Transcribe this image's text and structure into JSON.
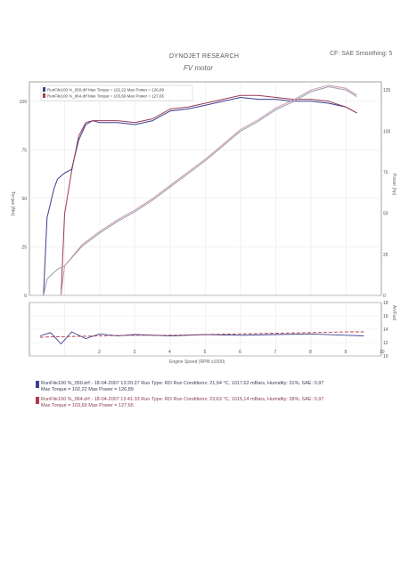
{
  "header": {
    "title": "DYNOJET RESEARCH",
    "subtitle": "FV motor",
    "cf": "CF: SAE  Smoothing: 5"
  },
  "chart_data": [
    {
      "type": "line",
      "title": "DYNOJET RESEARCH",
      "xlabel": "Engine Speed (RPM x1000)",
      "ylabel_left": "Torque (Nm)",
      "ylabel_right": "Power (hp)",
      "xlim": [
        0,
        10
      ],
      "ylim_left": [
        0,
        110
      ],
      "ylim_right": [
        0,
        130
      ],
      "yticks_left": [
        "0",
        "25",
        "50",
        "75",
        "100"
      ],
      "yticks_right": [
        "0",
        "25",
        "50",
        "75",
        "100",
        "125"
      ],
      "grid": true,
      "legend": [
        "RunFile100 %_050.drf Max Torque = 102,22  Max Power = 126,89",
        "RunFile100 %_064.drf Max Torque = 103,69  Max Power = 127,65"
      ],
      "series": [
        {
          "name": "RunFile100 %_050.drf Torque",
          "color": "#3a3f8f",
          "axis": "left",
          "x": [
            0.4,
            0.5,
            0.7,
            0.8,
            1.0,
            1.2,
            1.4,
            1.6,
            1.8,
            2.0,
            2.5,
            3.0,
            3.5,
            4.0,
            4.5,
            5.0,
            5.5,
            6.0,
            6.5,
            7.0,
            7.5,
            8.0,
            8.5,
            9.0,
            9.3
          ],
          "y": [
            0,
            40,
            55,
            60,
            63,
            65,
            80,
            88,
            90,
            89,
            89,
            88,
            90,
            95,
            96,
            98,
            100,
            102,
            101,
            101,
            100,
            100,
            99,
            97,
            94
          ]
        },
        {
          "name": "RunFile100 %_064.drf Torque",
          "color": "#9a3a55",
          "axis": "left",
          "x": [
            0.9,
            1.0,
            1.2,
            1.4,
            1.6,
            1.8,
            2.0,
            2.5,
            3.0,
            3.5,
            4.0,
            4.5,
            5.0,
            5.5,
            6.0,
            6.5,
            7.0,
            7.5,
            8.0,
            8.5,
            9.0,
            9.3
          ],
          "y": [
            0,
            42,
            64,
            82,
            89,
            90,
            90,
            90,
            89,
            91,
            96,
            97,
            99,
            101,
            103,
            103,
            102,
            101,
            101,
            100,
            97,
            94
          ]
        },
        {
          "name": "RunFile100 %_050.drf Power",
          "color": "#9a9aae",
          "axis": "right",
          "x": [
            0.4,
            0.5,
            0.8,
            1.0,
            1.5,
            2.0,
            2.5,
            3.0,
            3.5,
            4.0,
            4.5,
            5.0,
            5.5,
            6.0,
            6.5,
            7.0,
            7.5,
            8.0,
            8.5,
            9.0,
            9.3
          ],
          "y": [
            0,
            10,
            16,
            18,
            30,
            38,
            45,
            51,
            58,
            66,
            74,
            82,
            91,
            100,
            106,
            113,
            118,
            124,
            127,
            125,
            121
          ]
        },
        {
          "name": "RunFile100 %_064.drf Power",
          "color": "#c99aa8",
          "axis": "right",
          "x": [
            0.9,
            1.0,
            1.5,
            2.0,
            2.5,
            3.0,
            3.5,
            4.0,
            4.5,
            5.0,
            5.5,
            6.0,
            6.5,
            7.0,
            7.5,
            8.0,
            8.5,
            9.0,
            9.3
          ],
          "y": [
            0,
            18,
            31,
            39,
            46,
            52,
            59,
            67,
            75,
            83,
            92,
            101,
            107,
            114,
            119,
            125,
            128,
            126,
            122
          ]
        }
      ]
    },
    {
      "type": "line",
      "xlabel": "Engine Speed (RPM x1000)",
      "ylabel_right": "Air/Fuel",
      "xlim": [
        0,
        10
      ],
      "ylim": [
        10,
        18
      ],
      "yticks_right": [
        "10",
        "12",
        "14",
        "16",
        "18"
      ],
      "xticks": [
        "2",
        "3",
        "4",
        "5",
        "6",
        "7",
        "8",
        "9",
        "10"
      ],
      "series": [
        {
          "name": "RunFile100 %_050.drf Air/Fuel",
          "color": "#3a3f8f",
          "x": [
            0.3,
            0.6,
            0.9,
            1.2,
            1.6,
            2.0,
            2.5,
            3.0,
            4.0,
            5.0,
            6.0,
            7.0,
            8.0,
            9.0,
            9.5
          ],
          "y": [
            13.0,
            13.5,
            11.8,
            13.6,
            12.6,
            13.3,
            13.0,
            13.2,
            13.0,
            13.2,
            13.1,
            13.2,
            13.3,
            13.1,
            13.0
          ]
        },
        {
          "name": "RunFile100 %_064.drf Air/Fuel",
          "color": "#b03a4a",
          "x": [
            0.3,
            1.0,
            2.0,
            3.0,
            4.0,
            5.0,
            6.0,
            7.0,
            8.0,
            9.0,
            9.5
          ],
          "y": [
            12.8,
            12.9,
            13.0,
            13.1,
            13.1,
            13.2,
            13.3,
            13.4,
            13.5,
            13.6,
            13.6
          ]
        }
      ]
    }
  ],
  "footer": {
    "run1_line1": "RunFile100 %_050.drf - 18-04-2007 13:20:27  Run Type: RO  Run Conditions: 21,94 °C, 1017,62 mBars,  Humidity: 31%, SAE: 0,97",
    "run1_line2": "Max Torque = 102,22  Max Power = 126,89",
    "run2_line1": "RunFile100 %_064.drf - 18-04-2007 13:41:33  Run Type: RO  Run Conditions: 23,63 °C, 1015,14 mBars,  Humidity: 28%, SAE: 0,97",
    "run2_line2": "Max Torque = 103,69  Max Power = 127,65",
    "color1": "#3a3f8f",
    "color2": "#b03a4a"
  }
}
